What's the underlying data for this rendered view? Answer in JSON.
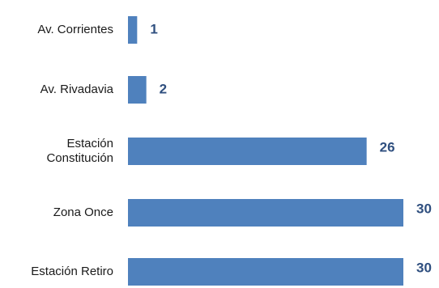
{
  "chart_data": {
    "type": "bar",
    "orientation": "horizontal",
    "title": "",
    "xlabel": "",
    "ylabel": "",
    "categories": [
      [
        "Av. Corrientes"
      ],
      [
        "Av. Rivadavia"
      ],
      [
        "Estación",
        "Constitución"
      ],
      [
        "Zona Once"
      ],
      [
        "Estación Retiro"
      ]
    ],
    "values": [
      1,
      2,
      26,
      30,
      30
    ],
    "value_labels": [
      "1",
      "2",
      "26",
      "30",
      "30"
    ],
    "xlim": [
      0,
      30
    ],
    "grid": false,
    "legend": "none",
    "colors": {
      "bar": "#4f81bd",
      "value_label": "#2f4f7f"
    }
  }
}
